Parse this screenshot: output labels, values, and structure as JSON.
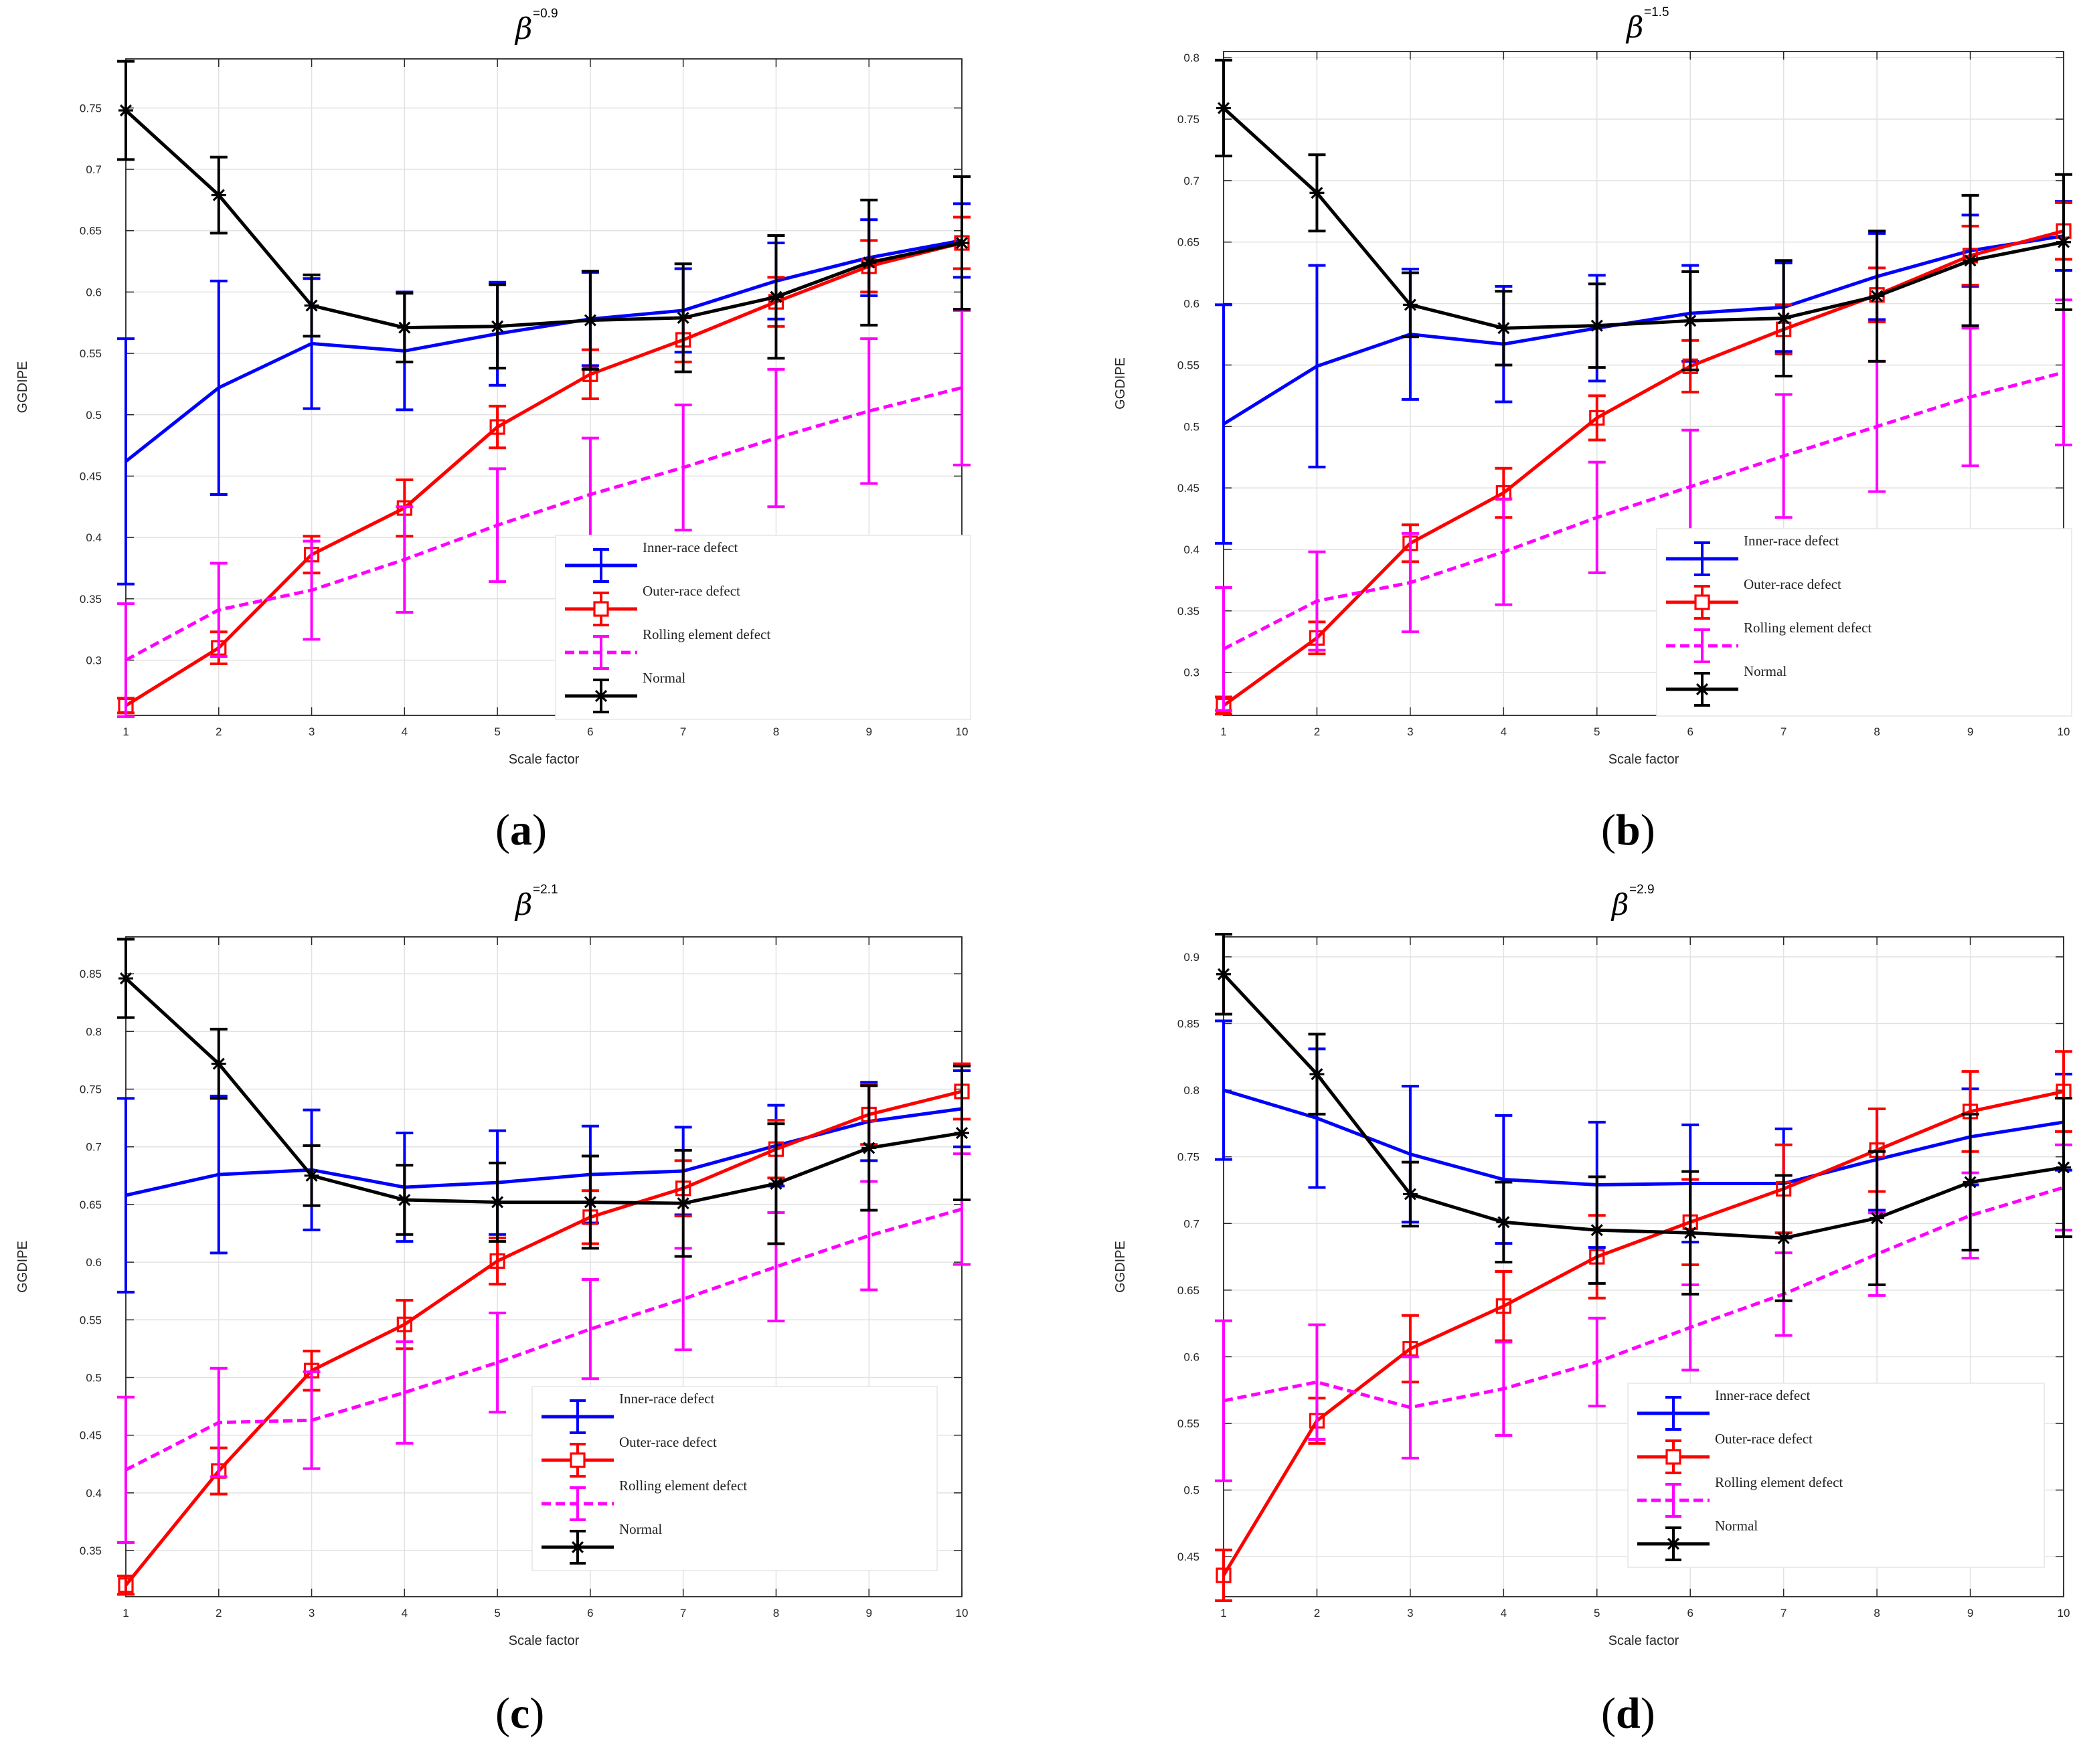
{
  "figure": {
    "panels": [
      {
        "id": "a",
        "label_letter": "a",
        "title_symbol": "β",
        "title_superscript": "=0.9",
        "xlabel": "Scale factor",
        "ylabel": "GGDIPE",
        "yticks": [
          "0.3",
          "0.35",
          "0.4",
          "0.45",
          "0.5",
          "0.55",
          "0.6",
          "0.65",
          "0.7",
          "0.75"
        ],
        "xticks": [
          "1",
          "2",
          "3",
          "4",
          "5",
          "6",
          "7",
          "8",
          "9",
          "10"
        ]
      },
      {
        "id": "b",
        "label_letter": "b",
        "title_symbol": "β",
        "title_superscript": "=1.5",
        "xlabel": "Scale factor",
        "ylabel": "GGDIPE",
        "yticks": [
          "0.3",
          "0.35",
          "0.4",
          "0.45",
          "0.5",
          "0.55",
          "0.6",
          "0.65",
          "0.7",
          "0.75",
          "0.8"
        ],
        "xticks": [
          "1",
          "2",
          "3",
          "4",
          "5",
          "6",
          "7",
          "8",
          "9",
          "10"
        ]
      },
      {
        "id": "c",
        "label_letter": "c",
        "title_symbol": "β",
        "title_superscript": "=2.1",
        "xlabel": "Scale factor",
        "ylabel": "GGDIPE",
        "yticks": [
          "0.35",
          "0.4",
          "0.45",
          "0.5",
          "0.55",
          "0.6",
          "0.65",
          "0.7",
          "0.75",
          "0.8",
          "0.85"
        ],
        "xticks": [
          "1",
          "2",
          "3",
          "4",
          "5",
          "6",
          "7",
          "8",
          "9",
          "10"
        ]
      },
      {
        "id": "d",
        "label_letter": "d",
        "title_symbol": "β",
        "title_superscript": "=2.9",
        "xlabel": "Scale factor",
        "ylabel": "GGDIPE",
        "yticks": [
          "0.45",
          "0.5",
          "0.55",
          "0.6",
          "0.65",
          "0.7",
          "0.75",
          "0.8",
          "0.85",
          "0.9"
        ],
        "xticks": [
          "1",
          "2",
          "3",
          "4",
          "5",
          "6",
          "7",
          "8",
          "9",
          "10"
        ]
      }
    ],
    "colors": {
      "inner": "#0000ff",
      "outer": "#ff0000",
      "rolling": "#ff00ff",
      "normal": "#000000",
      "grid": "#e2e2e2",
      "axes": "#262626"
    }
  },
  "chart_data": [
    {
      "type": "line",
      "title": "β=0.9",
      "xlabel": "Scale factor",
      "ylabel": "GGDIPE",
      "x": [
        1,
        2,
        3,
        4,
        5,
        6,
        7,
        8,
        9,
        10
      ],
      "xlim": [
        1,
        10
      ],
      "ylim": [
        0.255,
        0.79
      ],
      "legend": "lower-right",
      "series": [
        {
          "name": "Inner-race defect",
          "marker": "none",
          "values": [
            0.462,
            0.522,
            0.558,
            0.552,
            0.566,
            0.578,
            0.585,
            0.609,
            0.628,
            0.642
          ],
          "errors": [
            0.1,
            0.087,
            0.053,
            0.048,
            0.042,
            0.038,
            0.034,
            0.031,
            0.031,
            0.03
          ]
        },
        {
          "name": "Outer-race defect",
          "marker": "square",
          "values": [
            0.263,
            0.31,
            0.386,
            0.424,
            0.49,
            0.533,
            0.561,
            0.592,
            0.621,
            0.64
          ],
          "errors": [
            0.006,
            0.013,
            0.015,
            0.023,
            0.017,
            0.02,
            0.018,
            0.02,
            0.021,
            0.021
          ]
        },
        {
          "name": "Rolling element defect",
          "marker": "none",
          "values": [
            0.3,
            0.341,
            0.357,
            0.382,
            0.41,
            0.435,
            0.457,
            0.481,
            0.503,
            0.522
          ],
          "errors": [
            0.046,
            0.038,
            0.04,
            0.043,
            0.046,
            0.046,
            0.051,
            0.056,
            0.059,
            0.063
          ]
        },
        {
          "name": "Normal",
          "marker": "star",
          "values": [
            0.748,
            0.679,
            0.589,
            0.571,
            0.572,
            0.577,
            0.579,
            0.596,
            0.624,
            0.64
          ],
          "errors": [
            0.04,
            0.031,
            0.025,
            0.028,
            0.034,
            0.04,
            0.044,
            0.05,
            0.051,
            0.054
          ]
        }
      ]
    },
    {
      "type": "line",
      "title": "β=1.5",
      "xlabel": "Scale factor",
      "ylabel": "GGDIPE",
      "x": [
        1,
        2,
        3,
        4,
        5,
        6,
        7,
        8,
        9,
        10
      ],
      "xlim": [
        1,
        10
      ],
      "ylim": [
        0.265,
        0.805
      ],
      "legend": "lower-right",
      "series": [
        {
          "name": "Inner-race defect",
          "marker": "none",
          "values": [
            0.502,
            0.549,
            0.575,
            0.567,
            0.58,
            0.592,
            0.597,
            0.622,
            0.643,
            0.655
          ],
          "errors": [
            0.097,
            0.082,
            0.053,
            0.047,
            0.043,
            0.039,
            0.036,
            0.035,
            0.029,
            0.028
          ]
        },
        {
          "name": "Outer-race defect",
          "marker": "square",
          "values": [
            0.273,
            0.328,
            0.405,
            0.446,
            0.507,
            0.549,
            0.579,
            0.607,
            0.639,
            0.659
          ],
          "errors": [
            0.007,
            0.013,
            0.015,
            0.02,
            0.018,
            0.021,
            0.02,
            0.022,
            0.024,
            0.023
          ]
        },
        {
          "name": "Rolling element defect",
          "marker": "none",
          "values": [
            0.319,
            0.358,
            0.373,
            0.398,
            0.426,
            0.451,
            0.476,
            0.5,
            0.524,
            0.544
          ],
          "errors": [
            0.05,
            0.04,
            0.04,
            0.043,
            0.045,
            0.046,
            0.05,
            0.053,
            0.056,
            0.059
          ]
        },
        {
          "name": "Normal",
          "marker": "star",
          "values": [
            0.759,
            0.69,
            0.599,
            0.58,
            0.582,
            0.586,
            0.588,
            0.606,
            0.635,
            0.65
          ],
          "errors": [
            0.039,
            0.031,
            0.026,
            0.03,
            0.034,
            0.04,
            0.047,
            0.053,
            0.053,
            0.055
          ]
        }
      ]
    },
    {
      "type": "line",
      "title": "β=2.1",
      "xlabel": "Scale factor",
      "ylabel": "GGDIPE",
      "x": [
        1,
        2,
        3,
        4,
        5,
        6,
        7,
        8,
        9,
        10
      ],
      "xlim": [
        1,
        10
      ],
      "ylim": [
        0.31,
        0.882
      ],
      "legend": "lower-right",
      "series": [
        {
          "name": "Inner-race defect",
          "marker": "none",
          "values": [
            0.658,
            0.676,
            0.68,
            0.665,
            0.669,
            0.676,
            0.679,
            0.701,
            0.722,
            0.733
          ],
          "errors": [
            0.084,
            0.068,
            0.052,
            0.047,
            0.045,
            0.042,
            0.038,
            0.035,
            0.034,
            0.033
          ]
        },
        {
          "name": "Outer-race defect",
          "marker": "square",
          "values": [
            0.32,
            0.419,
            0.506,
            0.546,
            0.601,
            0.639,
            0.664,
            0.698,
            0.728,
            0.748
          ],
          "errors": [
            0.008,
            0.02,
            0.017,
            0.021,
            0.02,
            0.023,
            0.024,
            0.025,
            0.026,
            0.024
          ]
        },
        {
          "name": "Rolling element defect",
          "marker": "none",
          "values": [
            0.42,
            0.461,
            0.463,
            0.487,
            0.513,
            0.542,
            0.568,
            0.596,
            0.623,
            0.646
          ],
          "errors": [
            0.063,
            0.047,
            0.042,
            0.044,
            0.043,
            0.043,
            0.044,
            0.047,
            0.047,
            0.048
          ]
        },
        {
          "name": "Normal",
          "marker": "star",
          "values": [
            0.846,
            0.772,
            0.675,
            0.654,
            0.652,
            0.652,
            0.651,
            0.668,
            0.699,
            0.712
          ],
          "errors": [
            0.034,
            0.03,
            0.026,
            0.03,
            0.034,
            0.04,
            0.046,
            0.052,
            0.054,
            0.058
          ]
        }
      ]
    },
    {
      "type": "line",
      "title": "β=2.9",
      "xlabel": "Scale factor",
      "ylabel": "GGDIPE",
      "x": [
        1,
        2,
        3,
        4,
        5,
        6,
        7,
        8,
        9,
        10
      ],
      "xlim": [
        1,
        10
      ],
      "ylim": [
        0.42,
        0.915
      ],
      "legend": "lower-right",
      "series": [
        {
          "name": "Inner-race defect",
          "marker": "none",
          "values": [
            0.8,
            0.779,
            0.752,
            0.733,
            0.729,
            0.73,
            0.73,
            0.748,
            0.765,
            0.776
          ],
          "errors": [
            0.052,
            0.052,
            0.051,
            0.048,
            0.047,
            0.044,
            0.041,
            0.038,
            0.036,
            0.036
          ]
        },
        {
          "name": "Outer-race defect",
          "marker": "square",
          "values": [
            0.436,
            0.552,
            0.606,
            0.638,
            0.675,
            0.701,
            0.726,
            0.755,
            0.784,
            0.799
          ],
          "errors": [
            0.019,
            0.017,
            0.025,
            0.026,
            0.031,
            0.032,
            0.033,
            0.031,
            0.03,
            0.03
          ]
        },
        {
          "name": "Rolling element defect",
          "marker": "none",
          "values": [
            0.567,
            0.581,
            0.562,
            0.576,
            0.596,
            0.622,
            0.647,
            0.677,
            0.706,
            0.727
          ],
          "errors": [
            0.06,
            0.043,
            0.038,
            0.035,
            0.033,
            0.032,
            0.031,
            0.031,
            0.032,
            0.032
          ]
        },
        {
          "name": "Normal",
          "marker": "star",
          "values": [
            0.887,
            0.812,
            0.722,
            0.701,
            0.695,
            0.693,
            0.689,
            0.704,
            0.731,
            0.742
          ],
          "errors": [
            0.03,
            0.03,
            0.024,
            0.03,
            0.04,
            0.046,
            0.047,
            0.05,
            0.051,
            0.052
          ]
        }
      ]
    }
  ]
}
